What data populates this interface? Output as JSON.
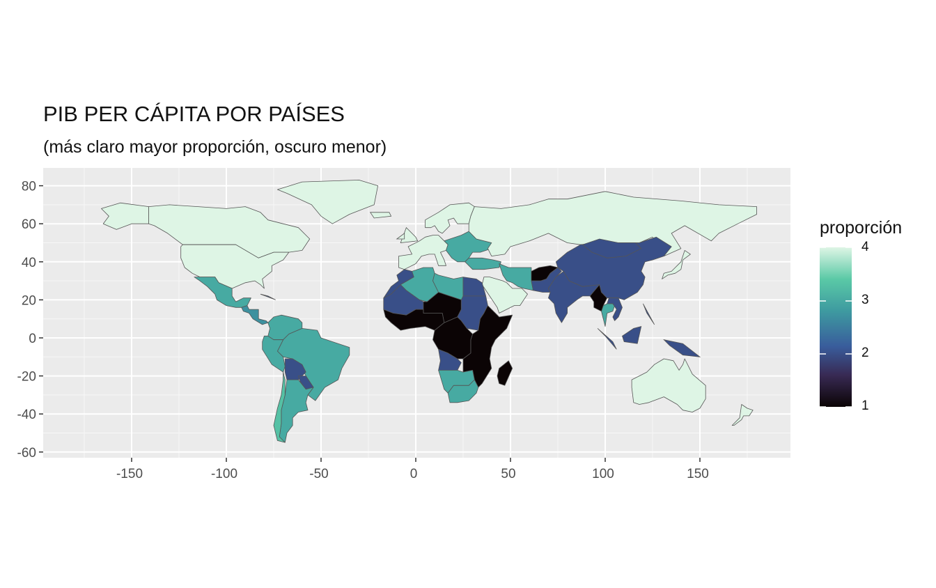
{
  "title": "PIB PER CÁPITA POR PAÍSES",
  "subtitle": "(más claro mayor proporción, oscuro menor)",
  "chart_data": {
    "type": "choropleth",
    "x_axis": {
      "ticks": [
        -150,
        -100,
        -50,
        0,
        50,
        100,
        150
      ],
      "labels": [
        "-150",
        "-100",
        "-50",
        "0",
        "50",
        "100",
        "150"
      ],
      "range": [
        -195,
        195
      ]
    },
    "y_axis": {
      "ticks": [
        80,
        60,
        40,
        20,
        0,
        -20,
        -40,
        -60
      ],
      "labels": [
        "80",
        "60",
        "40",
        "20",
        "0",
        "-20",
        "-40",
        "-60"
      ],
      "range": [
        -63,
        90
      ]
    },
    "grid": true,
    "legend": {
      "title": "proporción",
      "position": "right",
      "range": [
        1,
        4
      ],
      "breaks": [
        "4",
        "3",
        "2",
        "1"
      ],
      "colors": [
        "#0b0405",
        "#382a54",
        "#395d9c",
        "#3e9aa0",
        "#5ac9a6",
        "#def5e5"
      ]
    },
    "regions": [
      {
        "name": "Canada",
        "value": 4
      },
      {
        "name": "United States",
        "value": 4
      },
      {
        "name": "Alaska",
        "value": 4
      },
      {
        "name": "Greenland",
        "value": 4
      },
      {
        "name": "Mexico",
        "value": 3
      },
      {
        "name": "Central America",
        "value": 2.7
      },
      {
        "name": "Colombia/Venezuela",
        "value": 3
      },
      {
        "name": "Brazil",
        "value": 3
      },
      {
        "name": "Peru/Ecuador",
        "value": 3
      },
      {
        "name": "Bolivia",
        "value": 2
      },
      {
        "name": "Paraguay",
        "value": 2
      },
      {
        "name": "Argentina",
        "value": 3
      },
      {
        "name": "Chile",
        "value": 3.3
      },
      {
        "name": "Western Europe",
        "value": 4
      },
      {
        "name": "Scandinavia",
        "value": 4
      },
      {
        "name": "Eastern Europe",
        "value": 3
      },
      {
        "name": "Russia",
        "value": 4
      },
      {
        "name": "Turkey",
        "value": 3
      },
      {
        "name": "Iran",
        "value": 3
      },
      {
        "name": "Saudi Arabia / Gulf",
        "value": 4
      },
      {
        "name": "Afghanistan",
        "value": 1
      },
      {
        "name": "Pakistan",
        "value": 2
      },
      {
        "name": "India",
        "value": 2
      },
      {
        "name": "Myanmar",
        "value": 1
      },
      {
        "name": "Thailand",
        "value": 3
      },
      {
        "name": "China",
        "value": 2
      },
      {
        "name": "Mongolia",
        "value": 2
      },
      {
        "name": "Southeast Asia",
        "value": 2
      },
      {
        "name": "Japan",
        "value": 4
      },
      {
        "name": "Australia",
        "value": 4
      },
      {
        "name": "New Zealand",
        "value": 4
      },
      {
        "name": "Morocco",
        "value": 2
      },
      {
        "name": "Algeria",
        "value": 3
      },
      {
        "name": "Libya",
        "value": 3
      },
      {
        "name": "Egypt",
        "value": 2
      },
      {
        "name": "Mauritania/Mali",
        "value": 2
      },
      {
        "name": "Niger/Chad",
        "value": 1
      },
      {
        "name": "West Africa",
        "value": 1
      },
      {
        "name": "Sudan",
        "value": 2
      },
      {
        "name": "East Africa",
        "value": 1
      },
      {
        "name": "Central Africa",
        "value": 1
      },
      {
        "name": "Angola",
        "value": 2
      },
      {
        "name": "Namibia/Botswana",
        "value": 3
      },
      {
        "name": "South Africa",
        "value": 3
      },
      {
        "name": "Madagascar",
        "value": 1
      }
    ]
  }
}
